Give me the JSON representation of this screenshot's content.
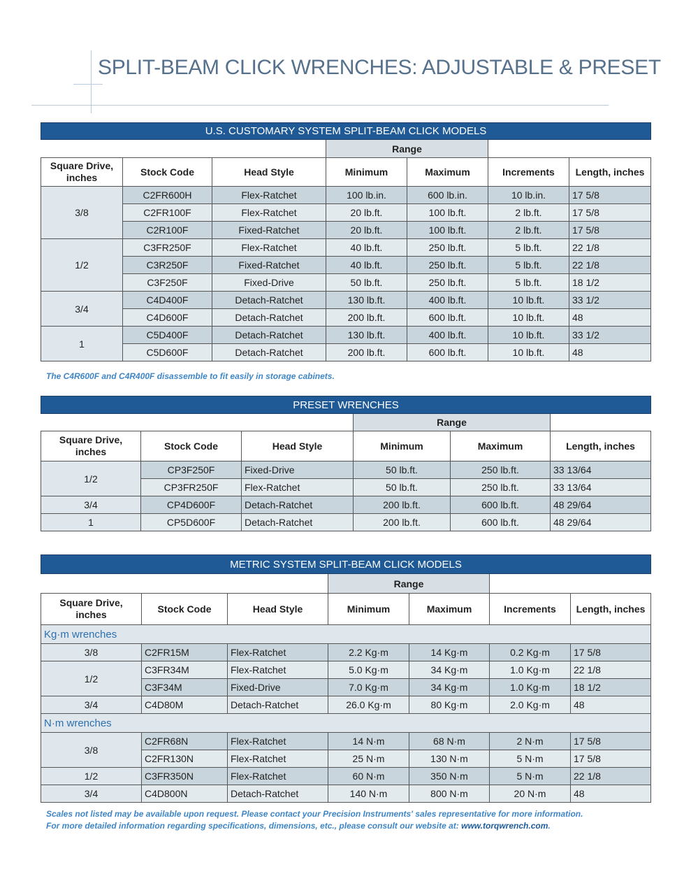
{
  "title": "SPLIT-BEAM CLICK WRENCHES: ADJUSTABLE & PRESET",
  "tables": [
    {
      "title": "U.S. CUSTOMARY SYSTEM SPLIT-BEAM CLICK MODELS",
      "range_label": "Range",
      "headers": [
        "Square Drive, inches",
        "Stock Code",
        "Head Style",
        "Minimum",
        "Maximum",
        "Increments",
        "Length, inches"
      ],
      "groups": [
        {
          "drive": "3/8",
          "rows": [
            [
              "C2FR600H",
              "Flex-Ratchet",
              "100 lb.in.",
              "600 lb.in.",
              "10 lb.in.",
              "17 5/8"
            ],
            [
              "C2FR100F",
              "Flex-Ratchet",
              "20 lb.ft.",
              "100 lb.ft.",
              "2 lb.ft.",
              "17 5/8"
            ],
            [
              "C2R100F",
              "Fixed-Ratchet",
              "20 lb.ft.",
              "100 lb.ft.",
              "2 lb.ft.",
              "17 5/8"
            ]
          ]
        },
        {
          "drive": "1/2",
          "rows": [
            [
              "C3FR250F",
              "Flex-Ratchet",
              "40 lb.ft.",
              "250 lb.ft.",
              "5 lb.ft.",
              "22 1/8"
            ],
            [
              "C3R250F",
              "Fixed-Ratchet",
              "40 lb.ft.",
              "250 lb.ft.",
              "5 lb.ft.",
              "22 1/8"
            ],
            [
              "C3F250F",
              "Fixed-Drive",
              "50 lb.ft.",
              "250 lb.ft.",
              "5 lb.ft.",
              "18 1/2"
            ]
          ]
        },
        {
          "drive": "3/4",
          "rows": [
            [
              "C4D400F",
              "Detach-Ratchet",
              "130 lb.ft.",
              "400 lb.ft.",
              "10 lb.ft.",
              "33 1/2"
            ],
            [
              "C4D600F",
              "Detach-Ratchet",
              "200 lb.ft.",
              "600 lb.ft.",
              "10 lb.ft.",
              "48"
            ]
          ]
        },
        {
          "drive": "1",
          "rows": [
            [
              "C5D400F",
              "Detach-Ratchet",
              "130 lb.ft.",
              "400 lb.ft.",
              "10 lb.ft.",
              "33 1/2"
            ],
            [
              "C5D600F",
              "Detach-Ratchet",
              "200 lb.ft.",
              "600 lb.ft.",
              "10 lb.ft.",
              "48"
            ]
          ]
        }
      ],
      "note": "The C4R600F and C4R400F disassemble to fit easily in storage cabinets."
    },
    {
      "title": "PRESET WRENCHES",
      "range_label": "Range",
      "headers": [
        "Square Drive, inches",
        "Stock Code",
        "Head Style",
        "Minimum",
        "Maximum",
        "Length, inches"
      ],
      "groups": [
        {
          "drive": "1/2",
          "rows": [
            [
              "CP3F250F",
              "Fixed-Drive",
              "50 lb.ft.",
              "250 lb.ft.",
              "33 13/64"
            ],
            [
              "CP3FR250F",
              "Flex-Ratchet",
              "50 lb.ft.",
              "250 lb.ft.",
              "33 13/64"
            ]
          ]
        },
        {
          "drive": "3/4",
          "rows": [
            [
              "CP4D600F",
              "Detach-Ratchet",
              "200 lb.ft.",
              "600 lb.ft.",
              "48 29/64"
            ]
          ]
        },
        {
          "drive": "1",
          "rows": [
            [
              "CP5D600F",
              "Detach-Ratchet",
              "200 lb.ft.",
              "600 lb.ft.",
              "48 29/64"
            ]
          ]
        }
      ]
    },
    {
      "title": "METRIC SYSTEM SPLIT-BEAM CLICK MODELS",
      "range_label": "Range",
      "headers": [
        "Square Drive, inches",
        "Stock Code",
        "Head Style",
        "Minimum",
        "Maximum",
        "Increments",
        "Length, inches"
      ],
      "sections": [
        {
          "label": "Kg·m wrenches",
          "groups": [
            {
              "drive": "3/8",
              "rows": [
                [
                  "C2FR15M",
                  "Flex-Ratchet",
                  "2.2 Kg·m",
                  "14 Kg·m",
                  "0.2 Kg·m",
                  "17 5/8"
                ]
              ]
            },
            {
              "drive": "1/2",
              "rows": [
                [
                  "C3FR34M",
                  "Flex-Ratchet",
                  "5.0 Kg·m",
                  "34 Kg·m",
                  "1.0 Kg·m",
                  "22 1/8"
                ],
                [
                  "C3F34M",
                  "Fixed-Drive",
                  "7.0 Kg·m",
                  "34 Kg·m",
                  "1.0 Kg·m",
                  "18 1/2"
                ]
              ]
            },
            {
              "drive": "3/4",
              "rows": [
                [
                  "C4D80M",
                  "Detach-Ratchet",
                  "26.0 Kg·m",
                  "80 Kg·m",
                  "2.0 Kg·m",
                  "48"
                ]
              ]
            }
          ]
        },
        {
          "label": "N·m wrenches",
          "groups": [
            {
              "drive": "3/8",
              "rows": [
                [
                  "C2FR68N",
                  "Flex-Ratchet",
                  "14 N·m",
                  "68 N·m",
                  "2 N·m",
                  "17 5/8"
                ],
                [
                  "C2FR130N",
                  "Flex-Ratchet",
                  "25 N·m",
                  "130 N·m",
                  "5 N·m",
                  "17 5/8"
                ]
              ]
            },
            {
              "drive": "1/2",
              "rows": [
                [
                  "C3FR350N",
                  "Flex-Ratchet",
                  "60 N·m",
                  "350 N·m",
                  "5 N·m",
                  "22 1/8"
                ]
              ]
            },
            {
              "drive": "3/4",
              "rows": [
                [
                  "C4D800N",
                  "Detach-Ratchet",
                  "140 N·m",
                  "800 N·m",
                  "20 N·m",
                  "48"
                ]
              ]
            }
          ]
        }
      ],
      "note": {
        "text": "Scales not listed may be available upon request. Please contact your Precision Instruments' sales representative for more information. For more detailed information regarding specifications, dimensions, etc., please consult our website at: ",
        "link": "www.torqwrench.com",
        "end": "."
      }
    }
  ]
}
